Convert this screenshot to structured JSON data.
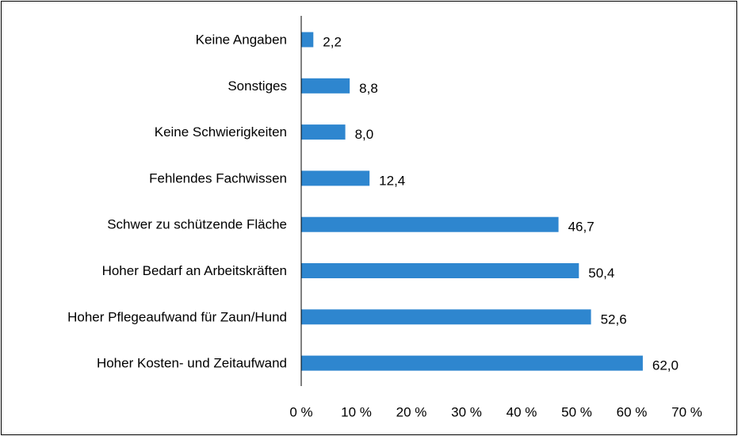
{
  "chart_data": {
    "type": "bar",
    "orientation": "horizontal",
    "title": "",
    "xlabel": "",
    "ylabel": "",
    "categories": [
      "Keine Angaben",
      "Sonstiges",
      "Keine Schwierigkeiten",
      "Fehlendes Fachwissen",
      "Schwer zu schützende Fläche",
      "Hoher Bedarf an Arbeitskräften",
      "Hoher Pflegeaufwand für Zaun/Hund",
      "Hoher Kosten- und Zeitaufwand"
    ],
    "values": [
      2.2,
      8.8,
      8.0,
      12.4,
      46.7,
      50.4,
      52.6,
      62.0
    ],
    "value_labels": [
      "2,2",
      "8,8",
      "8,0",
      "12,4",
      "46,7",
      "50,4",
      "52,6",
      "62,0"
    ],
    "xlim": [
      0,
      70
    ],
    "x_ticks": [
      0,
      10,
      20,
      30,
      40,
      50,
      60,
      70
    ],
    "x_tick_labels": [
      "0 %",
      "10 %",
      "20 %",
      "30 %",
      "40 %",
      "50 %",
      "60 %",
      "70 %"
    ],
    "grid": false,
    "legend": "none",
    "bar_color": "#2E86CF"
  }
}
